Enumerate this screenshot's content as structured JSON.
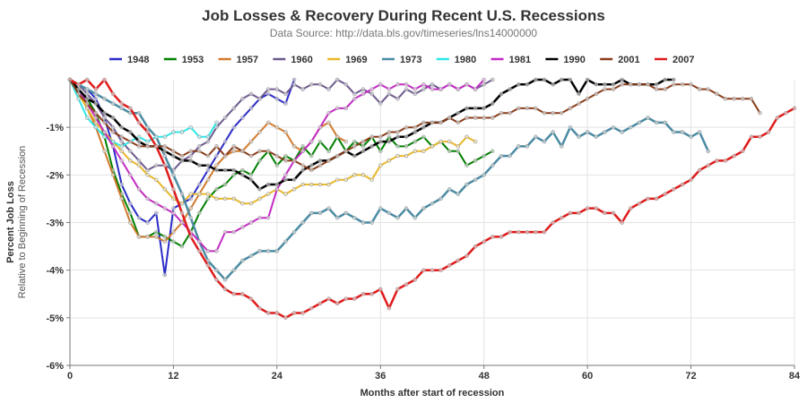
{
  "chart_data": {
    "type": "line",
    "title": "Job Losses & Recovery During Recent U.S. Recessions",
    "subtitle": "Data Source: http://data.bls.gov/timeseries/lns14000000",
    "xlabel": "Months after start of recession",
    "ylabel": "Percent Job Loss",
    "ylabel_sub": "Relative to Beginning of Recession",
    "xlim": [
      0,
      84
    ],
    "ylim": [
      -6,
      0
    ],
    "xticks": [
      0,
      12,
      24,
      36,
      48,
      60,
      72,
      84
    ],
    "yticks": [
      -1,
      -2,
      -3,
      -4,
      -5,
      -6
    ],
    "ytick_labels": [
      "-1%",
      "-2%",
      "-3%",
      "-4%",
      "-5%",
      "-6%"
    ],
    "grid": true,
    "legend_position": "top",
    "series": [
      {
        "name": "1948",
        "color": "#2b2bc8",
        "width": 2,
        "x": [
          0,
          1,
          2,
          3,
          4,
          5,
          6,
          7,
          8,
          9,
          10,
          11,
          12,
          13,
          14,
          15,
          16,
          17,
          18,
          19,
          20,
          21,
          22,
          23,
          24,
          25,
          26
        ],
        "y": [
          0,
          -0.1,
          -0.2,
          -0.4,
          -0.8,
          -1.4,
          -2.2,
          -2.6,
          -2.9,
          -3.0,
          -2.8,
          -4.1,
          -2.7,
          -2.6,
          -2.5,
          -2.2,
          -1.9,
          -1.6,
          -1.3,
          -1.0,
          -0.8,
          -0.6,
          -0.4,
          -0.3,
          -0.4,
          -0.5,
          0
        ]
      },
      {
        "name": "1953",
        "color": "#008000",
        "width": 2,
        "x": [
          0,
          1,
          2,
          3,
          4,
          5,
          6,
          7,
          8,
          9,
          10,
          11,
          12,
          13,
          14,
          15,
          16,
          17,
          18,
          19,
          20,
          21,
          22,
          23,
          24,
          25,
          26,
          27,
          28,
          29,
          30,
          31,
          32,
          33,
          34,
          35,
          36,
          37,
          38,
          39,
          40,
          41,
          42,
          43,
          44,
          45,
          46,
          47,
          48,
          49
        ],
        "y": [
          0,
          -0.2,
          -0.4,
          -0.7,
          -1.2,
          -1.9,
          -2.4,
          -2.8,
          -3.3,
          -3.3,
          -3.2,
          -3.3,
          -3.4,
          -3.5,
          -3.2,
          -2.8,
          -2.5,
          -2.3,
          -2.2,
          -2.0,
          -1.9,
          -2.0,
          -1.7,
          -1.5,
          -1.8,
          -1.6,
          -1.7,
          -1.4,
          -1.6,
          -1.3,
          -1.5,
          -1.2,
          -1.5,
          -1.3,
          -1.4,
          -1.2,
          -1.5,
          -1.2,
          -1.4,
          -1.4,
          -1.3,
          -1.2,
          -1.4,
          -1.3,
          -1.5,
          -1.5,
          -1.8,
          -1.7,
          -1.6,
          -1.5
        ]
      },
      {
        "name": "1957",
        "color": "#d07a2c",
        "width": 2,
        "x": [
          0,
          1,
          2,
          3,
          4,
          5,
          6,
          7,
          8,
          9,
          10,
          11,
          12,
          13,
          14,
          15,
          16,
          17,
          18,
          19,
          20,
          21,
          22,
          23,
          24,
          25,
          26,
          27,
          28,
          29,
          30,
          31,
          32
        ],
        "y": [
          0,
          -0.3,
          -0.6,
          -1.0,
          -1.5,
          -2.0,
          -2.5,
          -3.0,
          -3.3,
          -3.3,
          -3.3,
          -3.4,
          -3.2,
          -3.0,
          -2.7,
          -2.4,
          -2.1,
          -1.8,
          -1.6,
          -1.5,
          -1.5,
          -1.3,
          -1.1,
          -0.9,
          -1.0,
          -1.1,
          -1.4,
          -1.5,
          -1.3,
          -1.0,
          -0.9,
          -1.2,
          -1.3
        ]
      },
      {
        "name": "1960",
        "color": "#6d5a8e",
        "width": 2,
        "x": [
          0,
          1,
          2,
          3,
          4,
          5,
          6,
          7,
          8,
          9,
          10,
          11,
          12,
          13,
          14,
          15,
          16,
          17,
          18,
          19,
          20,
          21,
          22,
          23,
          24,
          25,
          26,
          27,
          28,
          29,
          30,
          31,
          32,
          33,
          34,
          35,
          36,
          37,
          38,
          39,
          40,
          41,
          42,
          43,
          44,
          45,
          46,
          47,
          48,
          49
        ],
        "y": [
          0,
          -0.1,
          -0.3,
          -0.5,
          -0.8,
          -1.0,
          -1.3,
          -1.5,
          -1.7,
          -1.9,
          -1.8,
          -1.8,
          -1.9,
          -1.7,
          -1.6,
          -1.4,
          -1.3,
          -1.0,
          -0.8,
          -0.6,
          -0.4,
          -0.3,
          -0.4,
          -0.2,
          -0.2,
          -0.3,
          -0.1,
          -0.2,
          -0.1,
          -0.1,
          -0.2,
          0,
          -0.1,
          -0.3,
          -0.2,
          -0.3,
          -0.5,
          -0.3,
          -0.4,
          -0.2,
          -0.3,
          -0.2,
          -0.1,
          -0.2,
          -0.1,
          -0.2,
          -0.1,
          -0.2,
          -0.1,
          0
        ]
      },
      {
        "name": "1969",
        "color": "#e8b82a",
        "width": 2,
        "x": [
          0,
          1,
          2,
          3,
          4,
          5,
          6,
          7,
          8,
          9,
          10,
          11,
          12,
          13,
          14,
          15,
          16,
          17,
          18,
          19,
          20,
          21,
          22,
          23,
          24,
          25,
          26,
          27,
          28,
          29,
          30,
          31,
          32,
          33,
          34,
          35,
          36,
          37,
          38,
          39,
          40,
          41,
          42,
          43,
          44,
          45,
          46,
          47
        ],
        "y": [
          0,
          -0.3,
          -0.6,
          -0.9,
          -1.1,
          -1.3,
          -1.5,
          -1.7,
          -1.8,
          -2.0,
          -2.1,
          -2.3,
          -2.5,
          -2.6,
          -2.4,
          -2.4,
          -2.4,
          -2.5,
          -2.5,
          -2.5,
          -2.6,
          -2.6,
          -2.5,
          -2.4,
          -2.3,
          -2.4,
          -2.3,
          -2.2,
          -2.2,
          -2.2,
          -2.2,
          -2.1,
          -2.1,
          -2.0,
          -2.0,
          -2.1,
          -1.8,
          -1.7,
          -1.6,
          -1.6,
          -1.5,
          -1.5,
          -1.4,
          -1.3,
          -1.3,
          -1.4,
          -1.2,
          -1.3
        ]
      },
      {
        "name": "1973",
        "color": "#4a8ba3",
        "width": 2.5,
        "x": [
          0,
          1,
          2,
          3,
          4,
          5,
          6,
          7,
          8,
          9,
          10,
          11,
          12,
          13,
          14,
          15,
          16,
          17,
          18,
          19,
          20,
          21,
          22,
          23,
          24,
          25,
          26,
          27,
          28,
          29,
          30,
          31,
          32,
          33,
          34,
          35,
          36,
          37,
          38,
          39,
          40,
          41,
          42,
          43,
          44,
          45,
          46,
          47,
          48,
          49,
          50,
          51,
          52,
          53,
          54,
          55,
          56,
          57,
          58,
          59,
          60,
          61,
          62,
          63,
          64,
          65,
          66,
          67,
          68,
          69,
          70,
          71,
          72,
          73,
          74
        ],
        "y": [
          0,
          -0.1,
          -0.2,
          -0.3,
          -0.4,
          -0.5,
          -0.6,
          -0.7,
          -0.7,
          -1.0,
          -1.2,
          -1.6,
          -2.0,
          -2.4,
          -2.9,
          -3.4,
          -3.8,
          -4.0,
          -4.2,
          -4.0,
          -3.8,
          -3.7,
          -3.6,
          -3.6,
          -3.6,
          -3.4,
          -3.2,
          -3.0,
          -2.8,
          -2.8,
          -2.7,
          -2.9,
          -2.8,
          -2.9,
          -3.0,
          -3.0,
          -2.7,
          -2.8,
          -2.9,
          -2.7,
          -2.9,
          -2.7,
          -2.6,
          -2.5,
          -2.3,
          -2.4,
          -2.2,
          -2.1,
          -2.0,
          -1.8,
          -1.6,
          -1.6,
          -1.4,
          -1.4,
          -1.2,
          -1.3,
          -1.1,
          -1.4,
          -1.0,
          -1.2,
          -1.1,
          -1.2,
          -1.1,
          -1.0,
          -1.1,
          -1.0,
          -0.9,
          -0.8,
          -0.9,
          -0.9,
          -1.1,
          -1.1,
          -1.2,
          -1.1,
          -1.5
        ]
      },
      {
        "name": "1980",
        "color": "#2ee8e8",
        "width": 2,
        "x": [
          0,
          1,
          2,
          3,
          4,
          5,
          6,
          7,
          8,
          9,
          10,
          11,
          12,
          13,
          14,
          15,
          16,
          17
        ],
        "y": [
          0,
          -0.4,
          -0.8,
          -1.0,
          -1.2,
          -1.3,
          -1.4,
          -1.3,
          -1.2,
          -1.3,
          -1.2,
          -1.2,
          -1.1,
          -1.1,
          -1.0,
          -1.2,
          -1.2,
          -0.9
        ]
      },
      {
        "name": "1981",
        "color": "#c42ac4",
        "width": 2,
        "x": [
          0,
          1,
          2,
          3,
          4,
          5,
          6,
          7,
          8,
          9,
          10,
          11,
          12,
          13,
          14,
          15,
          16,
          17,
          18,
          19,
          20,
          21,
          22,
          23,
          24,
          25,
          26,
          27,
          28,
          29,
          30,
          31,
          32,
          33,
          34,
          35,
          36,
          37,
          38,
          39,
          40,
          41,
          42,
          43,
          44,
          45,
          46,
          47,
          48
        ],
        "y": [
          0,
          -0.2,
          -0.5,
          -0.8,
          -1.1,
          -1.4,
          -1.7,
          -2.0,
          -2.3,
          -2.5,
          -2.6,
          -2.7,
          -2.8,
          -3.0,
          -3.2,
          -3.4,
          -3.6,
          -3.6,
          -3.2,
          -3.2,
          -3.1,
          -3.0,
          -2.9,
          -2.9,
          -2.3,
          -2.0,
          -1.7,
          -1.5,
          -1.3,
          -1.0,
          -0.7,
          -0.6,
          -0.6,
          -0.4,
          -0.3,
          -0.2,
          -0.1,
          -0.2,
          -0.1,
          -0.1,
          -0.2,
          -0.1,
          -0.2,
          -0.2,
          -0.1,
          -0.2,
          -0.1,
          -0.2,
          0
        ]
      },
      {
        "name": "1990",
        "color": "#000000",
        "width": 2.5,
        "x": [
          0,
          1,
          2,
          3,
          4,
          5,
          6,
          7,
          8,
          9,
          10,
          11,
          12,
          13,
          14,
          15,
          16,
          17,
          18,
          19,
          20,
          21,
          22,
          23,
          24,
          25,
          26,
          27,
          28,
          29,
          30,
          31,
          32,
          33,
          34,
          35,
          36,
          37,
          38,
          39,
          40,
          41,
          42,
          43,
          44,
          45,
          46,
          47,
          48,
          49,
          50,
          51,
          52,
          53,
          54,
          55,
          56,
          57,
          58,
          59,
          60,
          61,
          62,
          63,
          64,
          65,
          66,
          67,
          68,
          69,
          70
        ],
        "y": [
          0,
          -0.2,
          -0.4,
          -0.5,
          -0.7,
          -0.8,
          -1.0,
          -1.1,
          -1.3,
          -1.4,
          -1.4,
          -1.5,
          -1.6,
          -1.7,
          -1.7,
          -1.8,
          -1.8,
          -1.9,
          -1.9,
          -1.9,
          -2.0,
          -2.1,
          -2.3,
          -2.2,
          -2.2,
          -2.1,
          -2.1,
          -1.9,
          -1.8,
          -1.7,
          -1.7,
          -1.6,
          -1.5,
          -1.6,
          -1.5,
          -1.4,
          -1.3,
          -1.3,
          -1.2,
          -1.2,
          -1.1,
          -1.0,
          -0.9,
          -0.9,
          -0.8,
          -0.7,
          -0.6,
          -0.6,
          -0.6,
          -0.5,
          -0.3,
          -0.2,
          -0.1,
          -0.1,
          0,
          0,
          -0.1,
          0,
          0,
          -0.3,
          0,
          -0.1,
          -0.1,
          -0.1,
          0,
          -0.1,
          -0.1,
          -0.1,
          -0.1,
          0,
          0
        ]
      },
      {
        "name": "2001",
        "color": "#8b3c1a",
        "width": 2,
        "x": [
          0,
          1,
          2,
          3,
          4,
          5,
          6,
          7,
          8,
          9,
          10,
          11,
          12,
          13,
          14,
          15,
          16,
          17,
          18,
          19,
          20,
          21,
          22,
          23,
          24,
          25,
          26,
          27,
          28,
          29,
          30,
          31,
          32,
          33,
          34,
          35,
          36,
          37,
          38,
          39,
          40,
          41,
          42,
          43,
          44,
          45,
          46,
          47,
          48,
          49,
          50,
          51,
          52,
          53,
          54,
          55,
          56,
          57,
          58,
          59,
          60,
          61,
          62,
          63,
          64,
          65,
          66,
          67,
          68,
          69,
          70,
          71,
          72,
          73,
          74,
          75,
          76,
          77,
          78,
          79,
          80
        ],
        "y": [
          0,
          -0.3,
          -0.5,
          -0.7,
          -0.9,
          -1.1,
          -1.2,
          -1.3,
          -1.4,
          -1.4,
          -1.4,
          -1.4,
          -1.5,
          -1.6,
          -1.5,
          -1.5,
          -1.6,
          -1.4,
          -1.6,
          -1.4,
          -1.5,
          -1.6,
          -1.5,
          -1.5,
          -1.6,
          -1.7,
          -1.7,
          -1.8,
          -1.9,
          -1.8,
          -1.7,
          -1.6,
          -1.5,
          -1.4,
          -1.3,
          -1.2,
          -1.2,
          -1.1,
          -1.1,
          -1.0,
          -1.0,
          -0.9,
          -0.9,
          -0.9,
          -0.8,
          -0.9,
          -0.8,
          -0.8,
          -0.8,
          -0.8,
          -0.7,
          -0.7,
          -0.6,
          -0.6,
          -0.6,
          -0.7,
          -0.7,
          -0.7,
          -0.6,
          -0.5,
          -0.4,
          -0.3,
          -0.2,
          -0.2,
          -0.1,
          -0.1,
          -0.1,
          -0.1,
          -0.2,
          -0.2,
          -0.1,
          -0.1,
          -0.1,
          -0.2,
          -0.2,
          -0.3,
          -0.4,
          -0.4,
          -0.4,
          -0.4,
          -0.7
        ]
      },
      {
        "name": "2007",
        "color": "#e01b1b",
        "width": 2.5,
        "x": [
          0,
          1,
          2,
          3,
          4,
          5,
          6,
          7,
          8,
          9,
          10,
          11,
          12,
          13,
          14,
          15,
          16,
          17,
          18,
          19,
          20,
          21,
          22,
          23,
          24,
          25,
          26,
          27,
          28,
          29,
          30,
          31,
          32,
          33,
          34,
          35,
          36,
          37,
          38,
          39,
          40,
          41,
          42,
          43,
          44,
          45,
          46,
          47,
          48,
          49,
          50,
          51,
          52,
          53,
          54,
          55,
          56,
          57,
          58,
          59,
          60,
          61,
          62,
          63,
          64,
          65,
          66,
          67,
          68,
          69,
          70,
          71,
          72,
          73,
          74,
          75,
          76,
          77,
          78,
          79,
          80,
          81,
          82,
          83,
          84
        ],
        "y": [
          0,
          -0.1,
          0,
          -0.2,
          0,
          -0.3,
          -0.5,
          -0.6,
          -0.9,
          -1.1,
          -1.4,
          -1.8,
          -2.3,
          -2.8,
          -3.3,
          -3.6,
          -3.9,
          -4.2,
          -4.4,
          -4.5,
          -4.5,
          -4.6,
          -4.8,
          -4.9,
          -4.9,
          -5.0,
          -4.9,
          -4.9,
          -4.8,
          -4.7,
          -4.6,
          -4.7,
          -4.6,
          -4.6,
          -4.5,
          -4.5,
          -4.4,
          -4.8,
          -4.4,
          -4.3,
          -4.2,
          -4.0,
          -4.0,
          -4.0,
          -3.9,
          -3.8,
          -3.7,
          -3.5,
          -3.4,
          -3.3,
          -3.3,
          -3.2,
          -3.2,
          -3.2,
          -3.2,
          -3.2,
          -3.0,
          -2.9,
          -2.8,
          -2.8,
          -2.7,
          -2.7,
          -2.8,
          -2.8,
          -3.0,
          -2.7,
          -2.6,
          -2.5,
          -2.5,
          -2.4,
          -2.3,
          -2.2,
          -2.1,
          -1.9,
          -1.8,
          -1.7,
          -1.7,
          -1.6,
          -1.5,
          -1.2,
          -1.2,
          -1.1,
          -0.8,
          -0.7,
          -0.6
        ]
      }
    ]
  }
}
